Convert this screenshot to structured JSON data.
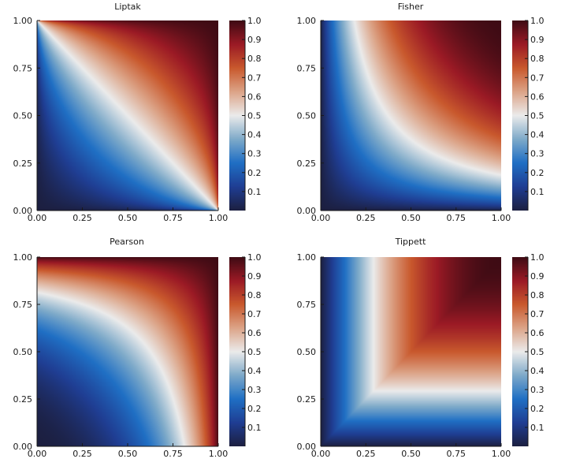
{
  "chart_data": [
    {
      "type": "heatmap",
      "title": "Liptak",
      "x_ticks": [
        "0.00",
        "0.25",
        "0.50",
        "0.75",
        "1.00"
      ],
      "y_ticks": [
        "0.00",
        "0.25",
        "0.50",
        "0.75",
        "1.00"
      ],
      "xlim": [
        0,
        1
      ],
      "ylim": [
        0,
        1
      ],
      "colorbar": {
        "ticks": [
          "0.1",
          "0.2",
          "0.3",
          "0.4",
          "0.5",
          "0.6",
          "0.7",
          "0.8",
          "0.9",
          "1.0"
        ],
        "range": [
          0,
          1
        ]
      },
      "function": "Stouffer/Liptak combined p-value: Phi(mean of inverse-normal of x and y)"
    },
    {
      "type": "heatmap",
      "title": "Fisher",
      "x_ticks": [
        "0.00",
        "0.25",
        "0.50",
        "0.75",
        "1.00"
      ],
      "y_ticks": [
        "0.00",
        "0.25",
        "0.50",
        "0.75",
        "1.00"
      ],
      "xlim": [
        0,
        1
      ],
      "ylim": [
        0,
        1
      ],
      "colorbar": {
        "ticks": [
          "0.1",
          "0.2",
          "0.3",
          "0.4",
          "0.5",
          "0.6",
          "0.7",
          "0.8",
          "0.9",
          "1.0"
        ],
        "range": [
          0,
          1
        ]
      },
      "function": "Fisher combined p-value: z(1 - ln z), z = x*y"
    },
    {
      "type": "heatmap",
      "title": "Pearson",
      "x_ticks": [
        "0.00",
        "0.25",
        "0.50",
        "0.75",
        "1.00"
      ],
      "y_ticks": [
        "0.00",
        "0.25",
        "0.50",
        "0.75",
        "1.00"
      ],
      "xlim": [
        0,
        1
      ],
      "ylim": [
        0,
        1
      ],
      "colorbar": {
        "ticks": [
          "0.1",
          "0.2",
          "0.3",
          "0.4",
          "0.5",
          "0.6",
          "0.7",
          "0.8",
          "0.9",
          "1.0"
        ],
        "range": [
          0,
          1
        ]
      },
      "function": "Pearson combined p-value: 1 - w(1 - ln w), w = (1-x)(1-y)"
    },
    {
      "type": "heatmap",
      "title": "Tippett",
      "x_ticks": [
        "0.00",
        "0.25",
        "0.50",
        "0.75",
        "1.00"
      ],
      "y_ticks": [
        "0.00",
        "0.25",
        "0.50",
        "0.75",
        "1.00"
      ],
      "xlim": [
        0,
        1
      ],
      "ylim": [
        0,
        1
      ],
      "colorbar": {
        "ticks": [
          "0.1",
          "0.2",
          "0.3",
          "0.4",
          "0.5",
          "0.6",
          "0.7",
          "0.8",
          "0.9",
          "1.0"
        ],
        "range": [
          0,
          1
        ]
      },
      "function": "Tippett combined p-value: 1 - (1 - min(x,y))^2"
    }
  ],
  "colors": {
    "colormap_stops": [
      "#1c1f40",
      "#1f3e93",
      "#1f6fc4",
      "#7eaac9",
      "#ebebeb",
      "#dca488",
      "#c9592d",
      "#9b1a25",
      "#3e0b14"
    ],
    "axis": "#1a1a1a"
  }
}
